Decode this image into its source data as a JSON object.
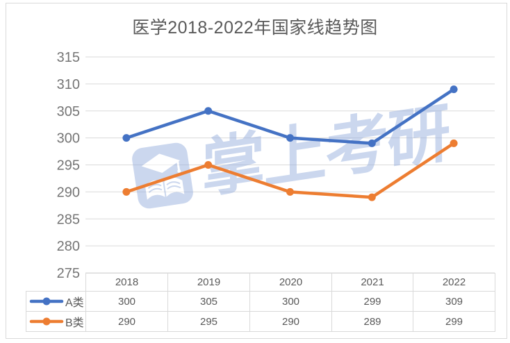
{
  "title": "医学2018-2022年国家线趋势图",
  "watermark": {
    "text": "掌上考研",
    "logo_icon": "grad-cap-book-logo",
    "color": "#99B1DF"
  },
  "colors": {
    "series_a_blue": "#4472C4",
    "series_b_orange": "#ED7D31",
    "gridline": "#d9d9d9",
    "table_border": "#d9d9d9",
    "axis_label_text": "#757575",
    "title_text": "#595959",
    "table_text": "#595959"
  },
  "chart_data": {
    "type": "line",
    "title": "医学2018-2022年国家线趋势图",
    "categories": [
      "2018",
      "2019",
      "2020",
      "2021",
      "2022"
    ],
    "series": [
      {
        "name": "A类",
        "color": "#4472C4",
        "values": [
          300,
          305,
          300,
          299,
          309
        ]
      },
      {
        "name": "B类",
        "color": "#ED7D31",
        "values": [
          290,
          295,
          290,
          289,
          299
        ]
      }
    ],
    "ylim": [
      275,
      315
    ],
    "y_tick_step": 5,
    "y_tick_labels": [
      "275",
      "280",
      "285",
      "290",
      "295",
      "300",
      "305",
      "310",
      "315"
    ],
    "xlabel": "",
    "ylabel": "",
    "grid": "horizontal",
    "legend_position": "data-table-left",
    "data_table_shown": true,
    "markers": "circle"
  }
}
